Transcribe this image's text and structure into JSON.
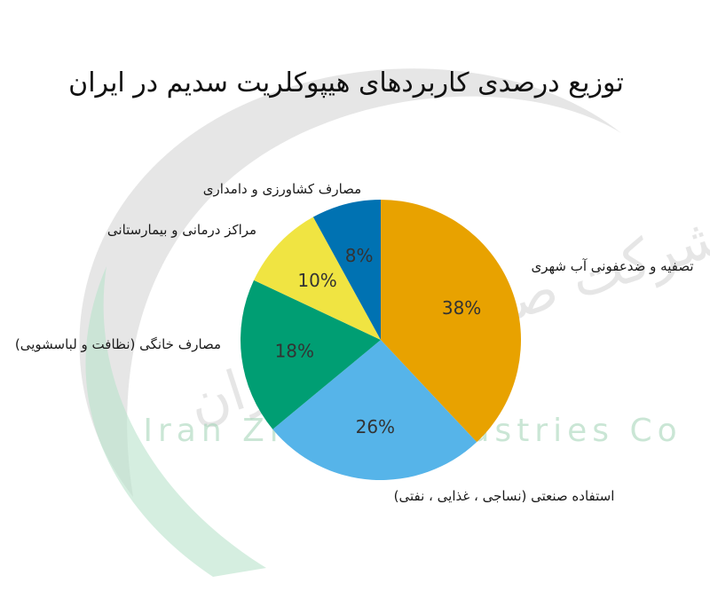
{
  "watermark": {
    "latin_text": "Iran Zhaver Industries Co",
    "persian_text": "شرکت صنایع ژاول ایران",
    "arc_gray": "#c8c8c8",
    "arc_green": "#b9e2cc"
  },
  "chart_data": {
    "type": "pie",
    "title": "توزیع درصدی کاربردهای هیپوکلریت سدیم در ایران",
    "unit": "%",
    "slices": [
      {
        "label": "تصفیه و ضدعفونی آب شهری",
        "value": 38,
        "display": "38%",
        "color": "#e8a200"
      },
      {
        "label": "استفاده صنعتی (نساجی ، غذایی ، نفتی)",
        "value": 26,
        "display": "26%",
        "color": "#56b4e9"
      },
      {
        "label": "مصارف خانگی (نظافت و لباسشویی)",
        "value": 18,
        "display": "18%",
        "color": "#009e73"
      },
      {
        "label": "مراکز درمانی و بیمارستانی",
        "value": 10,
        "display": "10%",
        "color": "#f0e442"
      },
      {
        "label": "مصارف کشاورزی و دامداری",
        "value": 8,
        "display": "8%",
        "color": "#0072b2"
      }
    ]
  }
}
